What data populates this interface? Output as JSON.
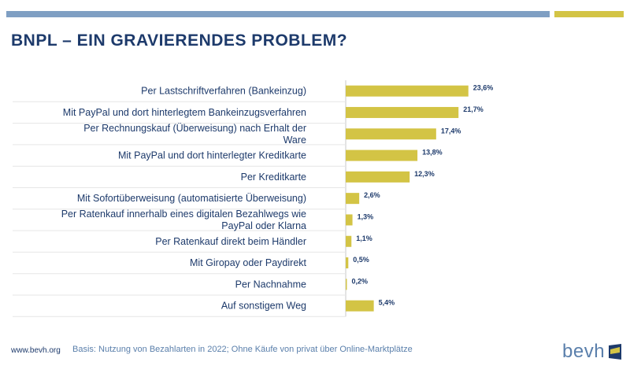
{
  "title": "BNPL – EIN GRAVIERENDES PROBLEM?",
  "colors": {
    "bar": "#d3c445",
    "text": "#1d3a6b",
    "accent_blue": "#7f9fc3",
    "accent_gold": "#d3c445"
  },
  "chart_data": {
    "type": "bar",
    "orientation": "horizontal",
    "categories": [
      [
        "Per Lastschriftverfahren (Bankeinzug)"
      ],
      [
        "Mit PayPal und dort hinterlegtem Bankeinzugsverfahren"
      ],
      [
        "Per Rechnungskauf (Überweisung) nach Erhalt der",
        "Ware"
      ],
      [
        "Mit PayPal und dort hinterlegter Kreditkarte"
      ],
      [
        "Per Kreditkarte"
      ],
      [
        "Mit Sofortüberweisung (automatisierte Überweisung)"
      ],
      [
        "Per Ratenkauf innerhalb eines digitalen Bezahlwegs wie",
        "PayPal oder Klarna"
      ],
      [
        "Per Ratenkauf direkt beim Händler"
      ],
      [
        "Mit Giropay oder Paydirekt"
      ],
      [
        "Per Nachnahme"
      ],
      [
        "Auf sonstigem Weg"
      ]
    ],
    "values": [
      23.6,
      21.7,
      17.4,
      13.8,
      12.3,
      2.6,
      1.3,
      1.1,
      0.5,
      0.2,
      5.4
    ],
    "value_labels": [
      "23,6%",
      "21,7%",
      "17,4%",
      "13,8%",
      "12,3%",
      "2,6%",
      "1,3%",
      "1,1%",
      "0,5%",
      "0,2%",
      "5,4%"
    ],
    "xlim": [
      0,
      25
    ],
    "grid": false,
    "legend": "none"
  },
  "footer": {
    "url": "www.bevh.org",
    "note": "Basis: Nutzung von Bezahlarten in 2022; Ohne Käufe von privat über Online-Marktplätze"
  },
  "logo": {
    "text": "bevh",
    "icon": "bevh-logo-mark"
  }
}
